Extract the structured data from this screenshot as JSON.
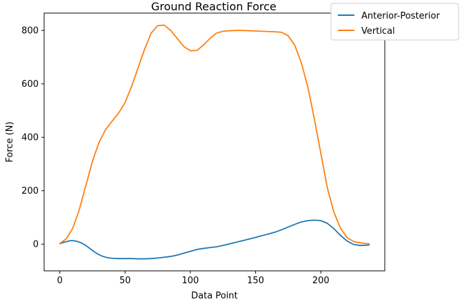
{
  "chart_data": {
    "type": "line",
    "title": "Ground Reaction Force",
    "xlabel": "Data Point",
    "ylabel": "Force (N)",
    "xlim": [
      -12,
      249
    ],
    "ylim": [
      -100,
      865
    ],
    "xticks": [
      0,
      50,
      100,
      150,
      200
    ],
    "yticks": [
      0,
      200,
      400,
      600,
      800
    ],
    "grid": false,
    "legend": "top-right",
    "series": [
      {
        "name": "Anterior-Posterior",
        "color": "#1f77b4",
        "x": [
          0,
          4,
          8,
          10,
          12,
          16,
          20,
          24,
          28,
          32,
          36,
          40,
          45,
          50,
          55,
          60,
          65,
          70,
          75,
          80,
          85,
          90,
          95,
          100,
          105,
          110,
          115,
          120,
          125,
          130,
          135,
          140,
          145,
          150,
          155,
          160,
          165,
          170,
          175,
          180,
          185,
          190,
          195,
          200,
          205,
          210,
          215,
          220,
          225,
          230,
          235,
          237
        ],
        "y": [
          2,
          8,
          13,
          13,
          12,
          6,
          -5,
          -20,
          -34,
          -44,
          -50,
          -53,
          -54,
          -54,
          -54,
          -55,
          -55,
          -54,
          -52,
          -49,
          -46,
          -41,
          -34,
          -27,
          -20,
          -16,
          -13,
          -10,
          -5,
          1,
          7,
          13,
          19,
          25,
          32,
          38,
          45,
          54,
          64,
          74,
          83,
          88,
          90,
          88,
          78,
          58,
          33,
          12,
          -1,
          -5,
          -4,
          -3
        ]
      },
      {
        "name": "Vertical",
        "color": "#ff7f0e",
        "x": [
          0,
          5,
          10,
          15,
          20,
          25,
          30,
          35,
          40,
          45,
          50,
          55,
          60,
          65,
          70,
          75,
          80,
          85,
          90,
          95,
          100,
          105,
          110,
          115,
          120,
          125,
          130,
          135,
          140,
          145,
          150,
          155,
          160,
          165,
          170,
          175,
          180,
          185,
          190,
          195,
          200,
          205,
          210,
          215,
          220,
          225,
          230,
          235,
          237
        ],
        "y": [
          2,
          20,
          60,
          130,
          220,
          310,
          380,
          428,
          460,
          490,
          530,
          590,
          660,
          730,
          790,
          818,
          820,
          800,
          770,
          740,
          724,
          725,
          745,
          770,
          790,
          797,
          799,
          800,
          800,
          799,
          798,
          797,
          796,
          795,
          793,
          780,
          745,
          680,
          590,
          470,
          340,
          210,
          120,
          60,
          25,
          10,
          5,
          2,
          1
        ]
      }
    ]
  }
}
